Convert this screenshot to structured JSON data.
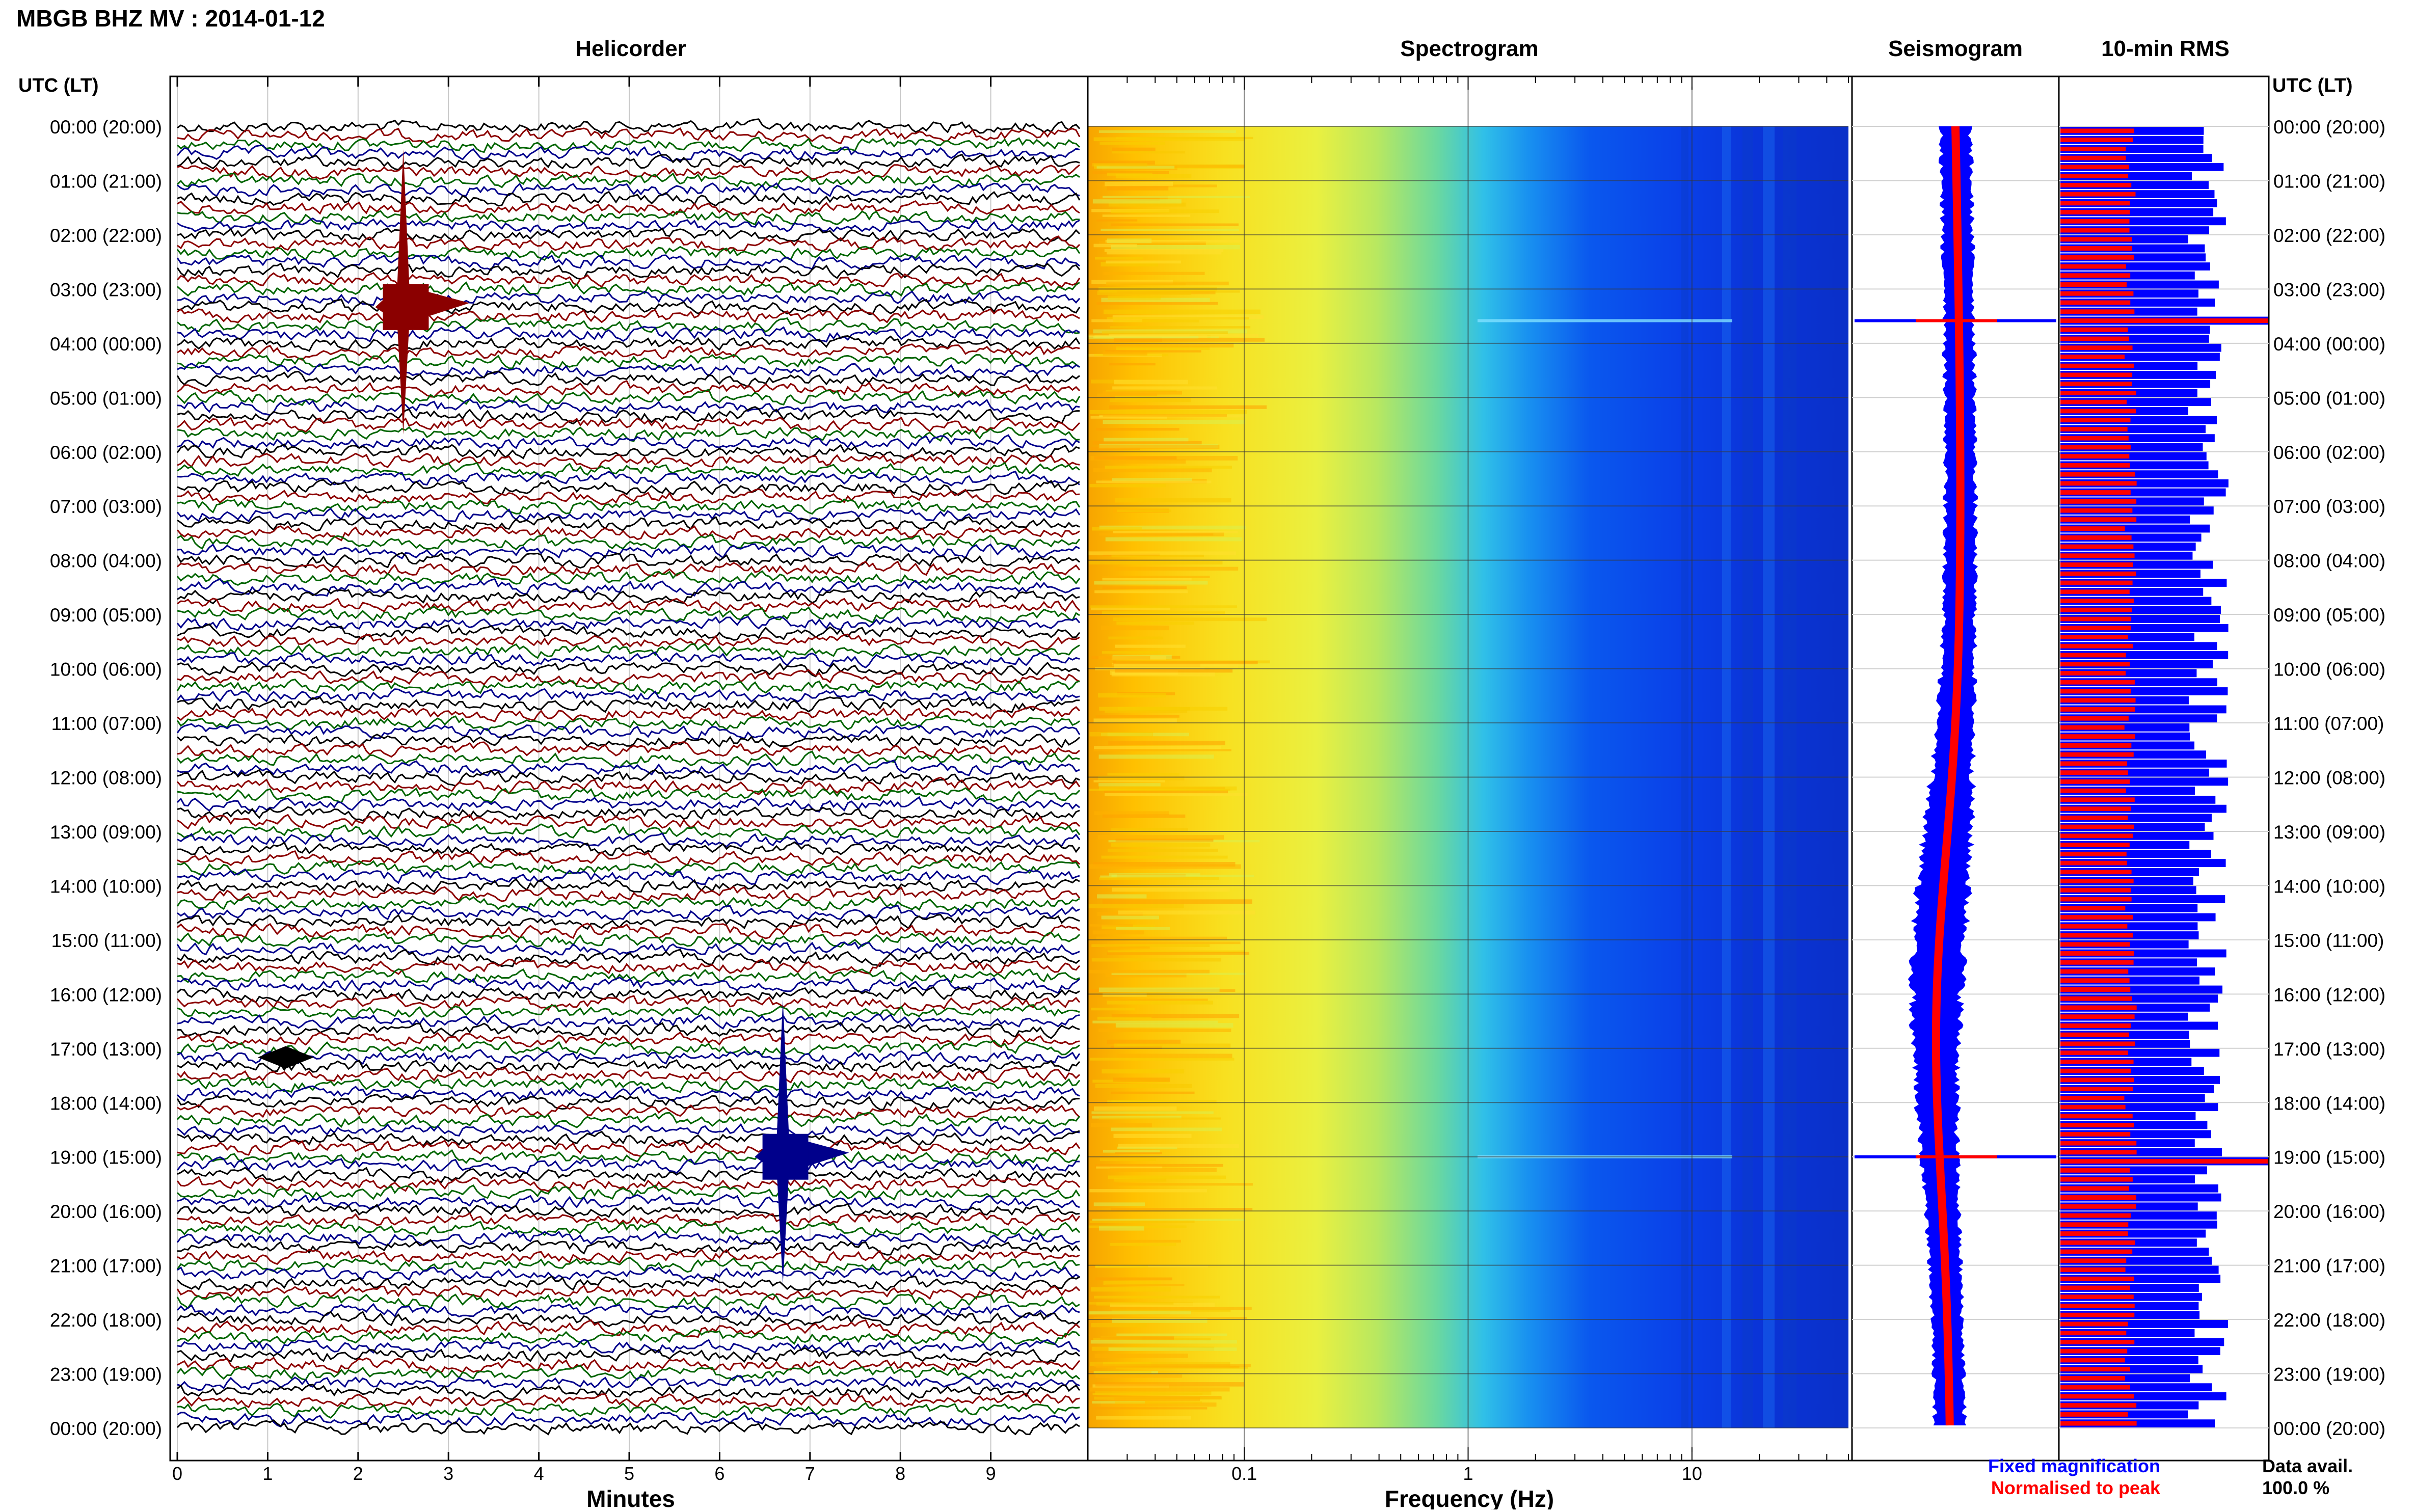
{
  "title": "MBGB BHZ MV : 2014-01-12",
  "panels": {
    "helicorder": "Helicorder",
    "spectrogram": "Spectrogram",
    "seismogram": "Seismogram",
    "rms": "10-min RMS"
  },
  "time_axis_label": "UTC (LT)",
  "time_labels": [
    "00:00 (20:00)",
    "01:00 (21:00)",
    "02:00 (22:00)",
    "03:00 (23:00)",
    "04:00 (00:00)",
    "05:00 (01:00)",
    "06:00 (02:00)",
    "07:00 (03:00)",
    "08:00 (04:00)",
    "09:00 (05:00)",
    "10:00 (06:00)",
    "11:00 (07:00)",
    "12:00 (08:00)",
    "13:00 (09:00)",
    "14:00 (10:00)",
    "15:00 (11:00)",
    "16:00 (12:00)",
    "17:00 (13:00)",
    "18:00 (14:00)",
    "19:00 (15:00)",
    "20:00 (16:00)",
    "21:00 (17:00)",
    "22:00 (18:00)",
    "23:00 (19:00)",
    "00:00 (20:00)"
  ],
  "minutes_axis": {
    "label": "Minutes",
    "ticks": [
      "0",
      "1",
      "2",
      "3",
      "4",
      "5",
      "6",
      "7",
      "8",
      "9"
    ]
  },
  "frequency_axis": {
    "label": "Frequency (Hz)",
    "ticks": [
      "0.1",
      "1",
      "10"
    ]
  },
  "legend": {
    "fixed": "Fixed magnification",
    "normalised": "Normalised to peak"
  },
  "data_availability": {
    "label": "Data avail.",
    "value": "100.0 %"
  },
  "colors": {
    "trace_cycle": [
      "#000000",
      "#8b0000",
      "#006400",
      "#00008b"
    ],
    "fixed": "#0000ff",
    "normalised": "#ff0000"
  },
  "chart_data": [
    {
      "type": "line",
      "panel": "Helicorder",
      "x_units": "minutes",
      "xlim": [
        0,
        10
      ],
      "rows_per_hour": 6,
      "events": [
        {
          "time": "03:20",
          "minute": 2.5,
          "color": "#8b0000",
          "note": "large event"
        },
        {
          "time": "17:10",
          "minute": 1.2,
          "color": "#000000",
          "note": "small event"
        },
        {
          "time": "19:00",
          "minute": 6.7,
          "color": "#00008b",
          "note": "large event"
        }
      ]
    },
    {
      "type": "heatmap",
      "panel": "Spectrogram",
      "xscale": "log",
      "xlim": [
        0.02,
        50
      ],
      "xlabel": "Frequency (Hz)"
    },
    {
      "type": "bar",
      "panel": "10-min RMS",
      "series": [
        {
          "name": "Fixed magnification",
          "color": "#0000ff"
        },
        {
          "name": "Normalised to peak",
          "color": "#ff0000"
        }
      ],
      "peaks": [
        {
          "time": "03:30",
          "relative": 1.0
        },
        {
          "time": "19:00",
          "relative": 1.0
        }
      ]
    }
  ]
}
